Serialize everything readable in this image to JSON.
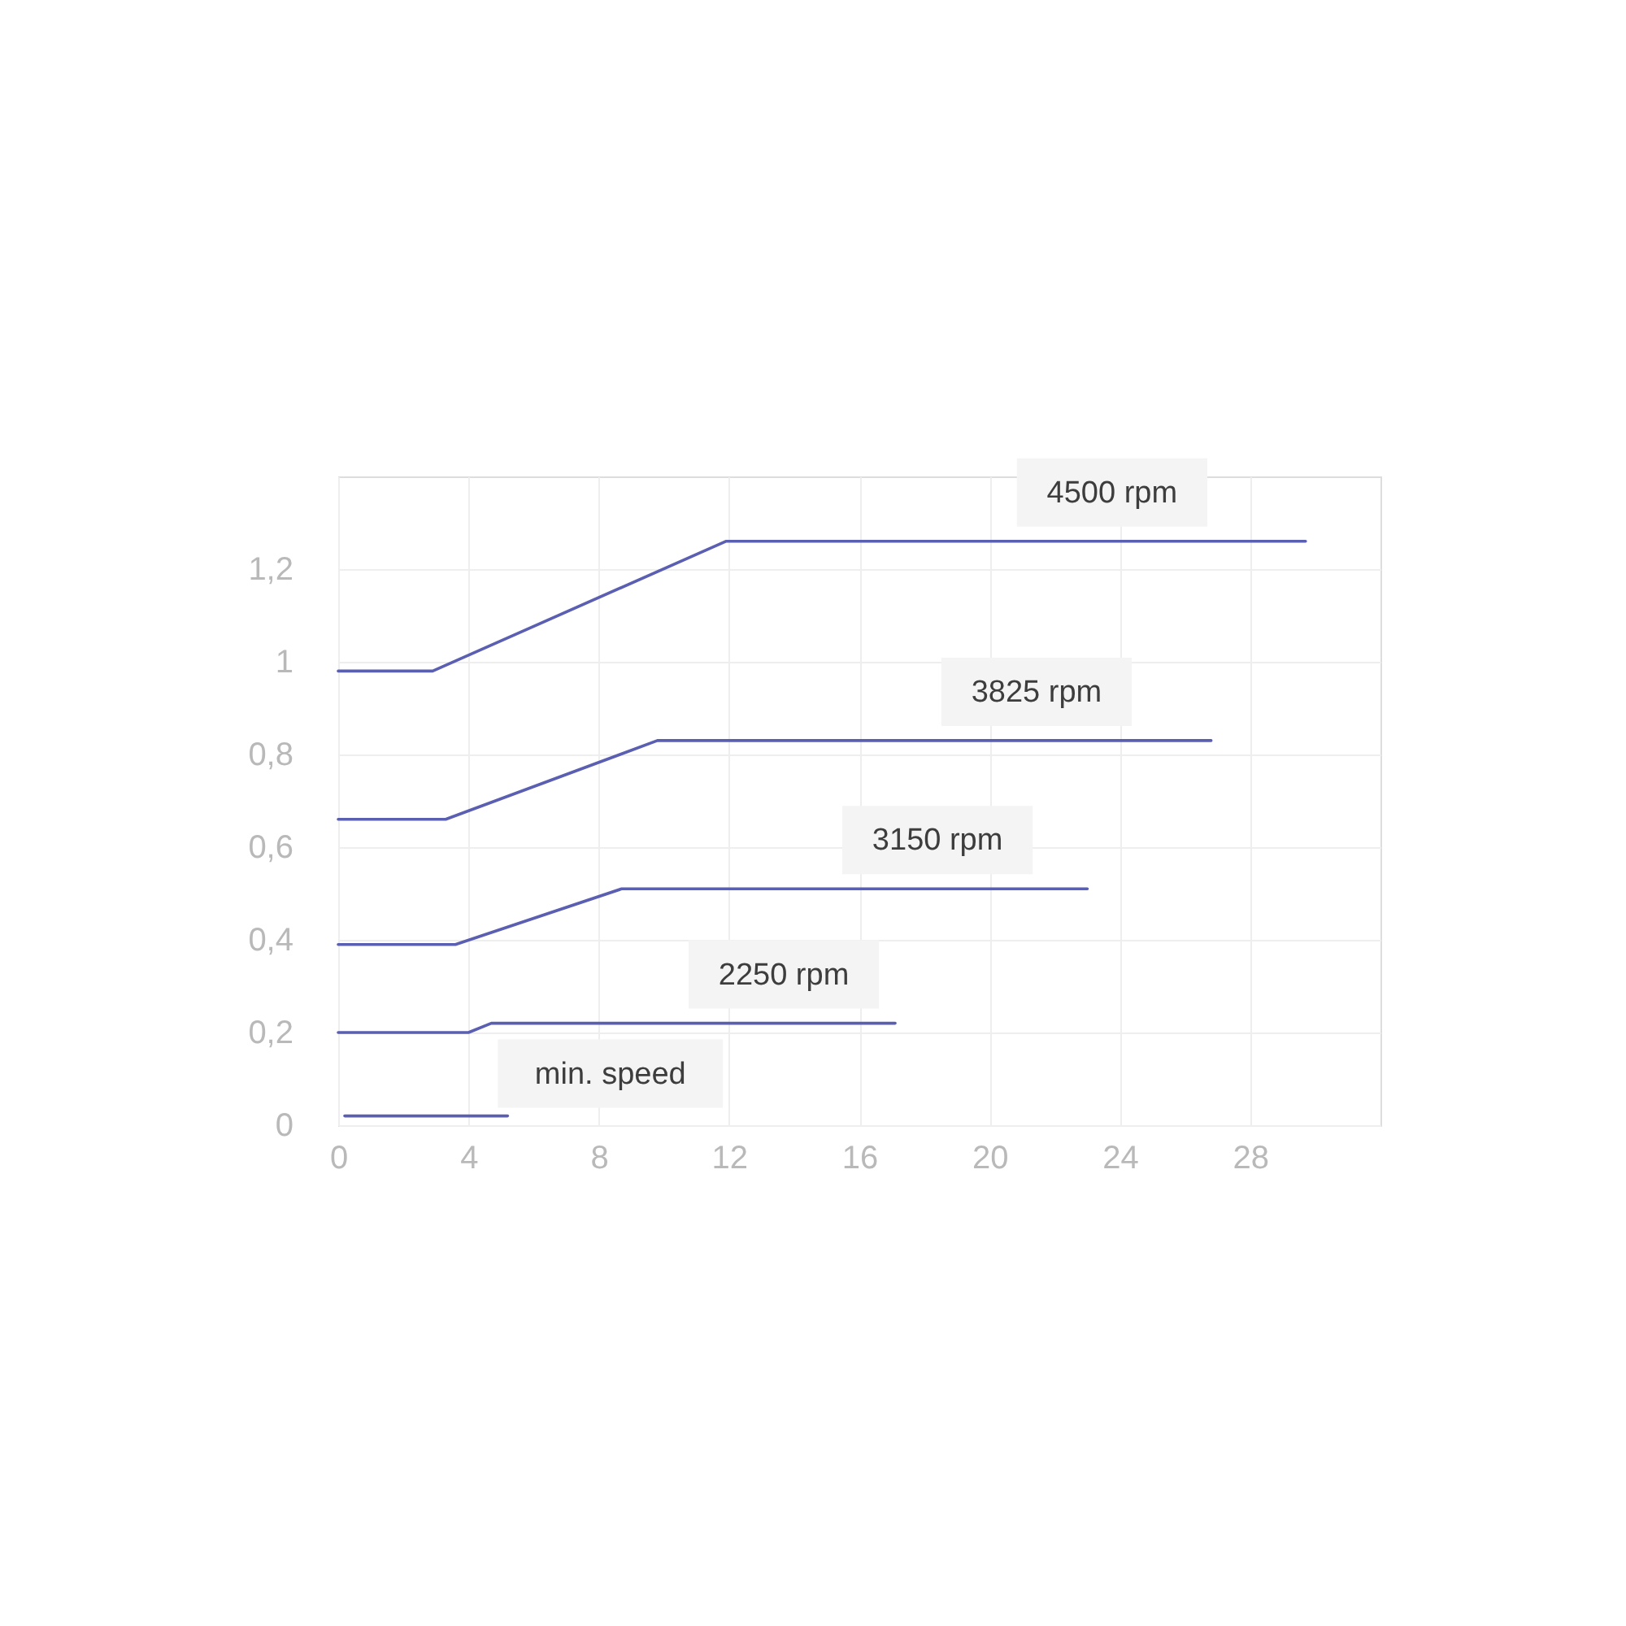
{
  "chart_data": {
    "type": "line",
    "series": [
      {
        "name": "4500 rpm",
        "color": "#5b5fb2",
        "x": [
          0,
          2.9,
          11.9,
          29.7
        ],
        "values": [
          0.98,
          0.98,
          1.26,
          1.26
        ]
      },
      {
        "name": "3825 rpm",
        "color": "#5b5fb2",
        "x": [
          0,
          3.3,
          9.8,
          26.8
        ],
        "values": [
          0.66,
          0.66,
          0.83,
          0.83
        ]
      },
      {
        "name": "3150 rpm",
        "color": "#5b5fb2",
        "x": [
          0,
          3.6,
          8.7,
          23.0
        ],
        "values": [
          0.39,
          0.39,
          0.51,
          0.51
        ]
      },
      {
        "name": "2250 rpm",
        "color": "#5b5fb2",
        "x": [
          0,
          4.0,
          4.7,
          17.1
        ],
        "values": [
          0.2,
          0.2,
          0.22,
          0.22
        ]
      },
      {
        "name": "min. speed",
        "color": "#5b5fb2",
        "x": [
          0.2,
          5.2
        ],
        "values": [
          0.02,
          0.02
        ]
      }
    ],
    "xlim": [
      0,
      32
    ],
    "xticks": [
      0,
      4,
      8,
      12,
      16,
      20,
      24,
      28
    ],
    "ylim": [
      0,
      1.4
    ],
    "yticks": [
      0,
      {
        "value": 0.2,
        "label": "0,2"
      },
      {
        "value": 0.4,
        "label": "0,4"
      },
      {
        "value": 0.6,
        "label": "0,6"
      },
      {
        "value": 0.8,
        "label": "0,8"
      },
      1,
      {
        "value": 1.2,
        "label": "1,2"
      }
    ],
    "grid": true
  }
}
